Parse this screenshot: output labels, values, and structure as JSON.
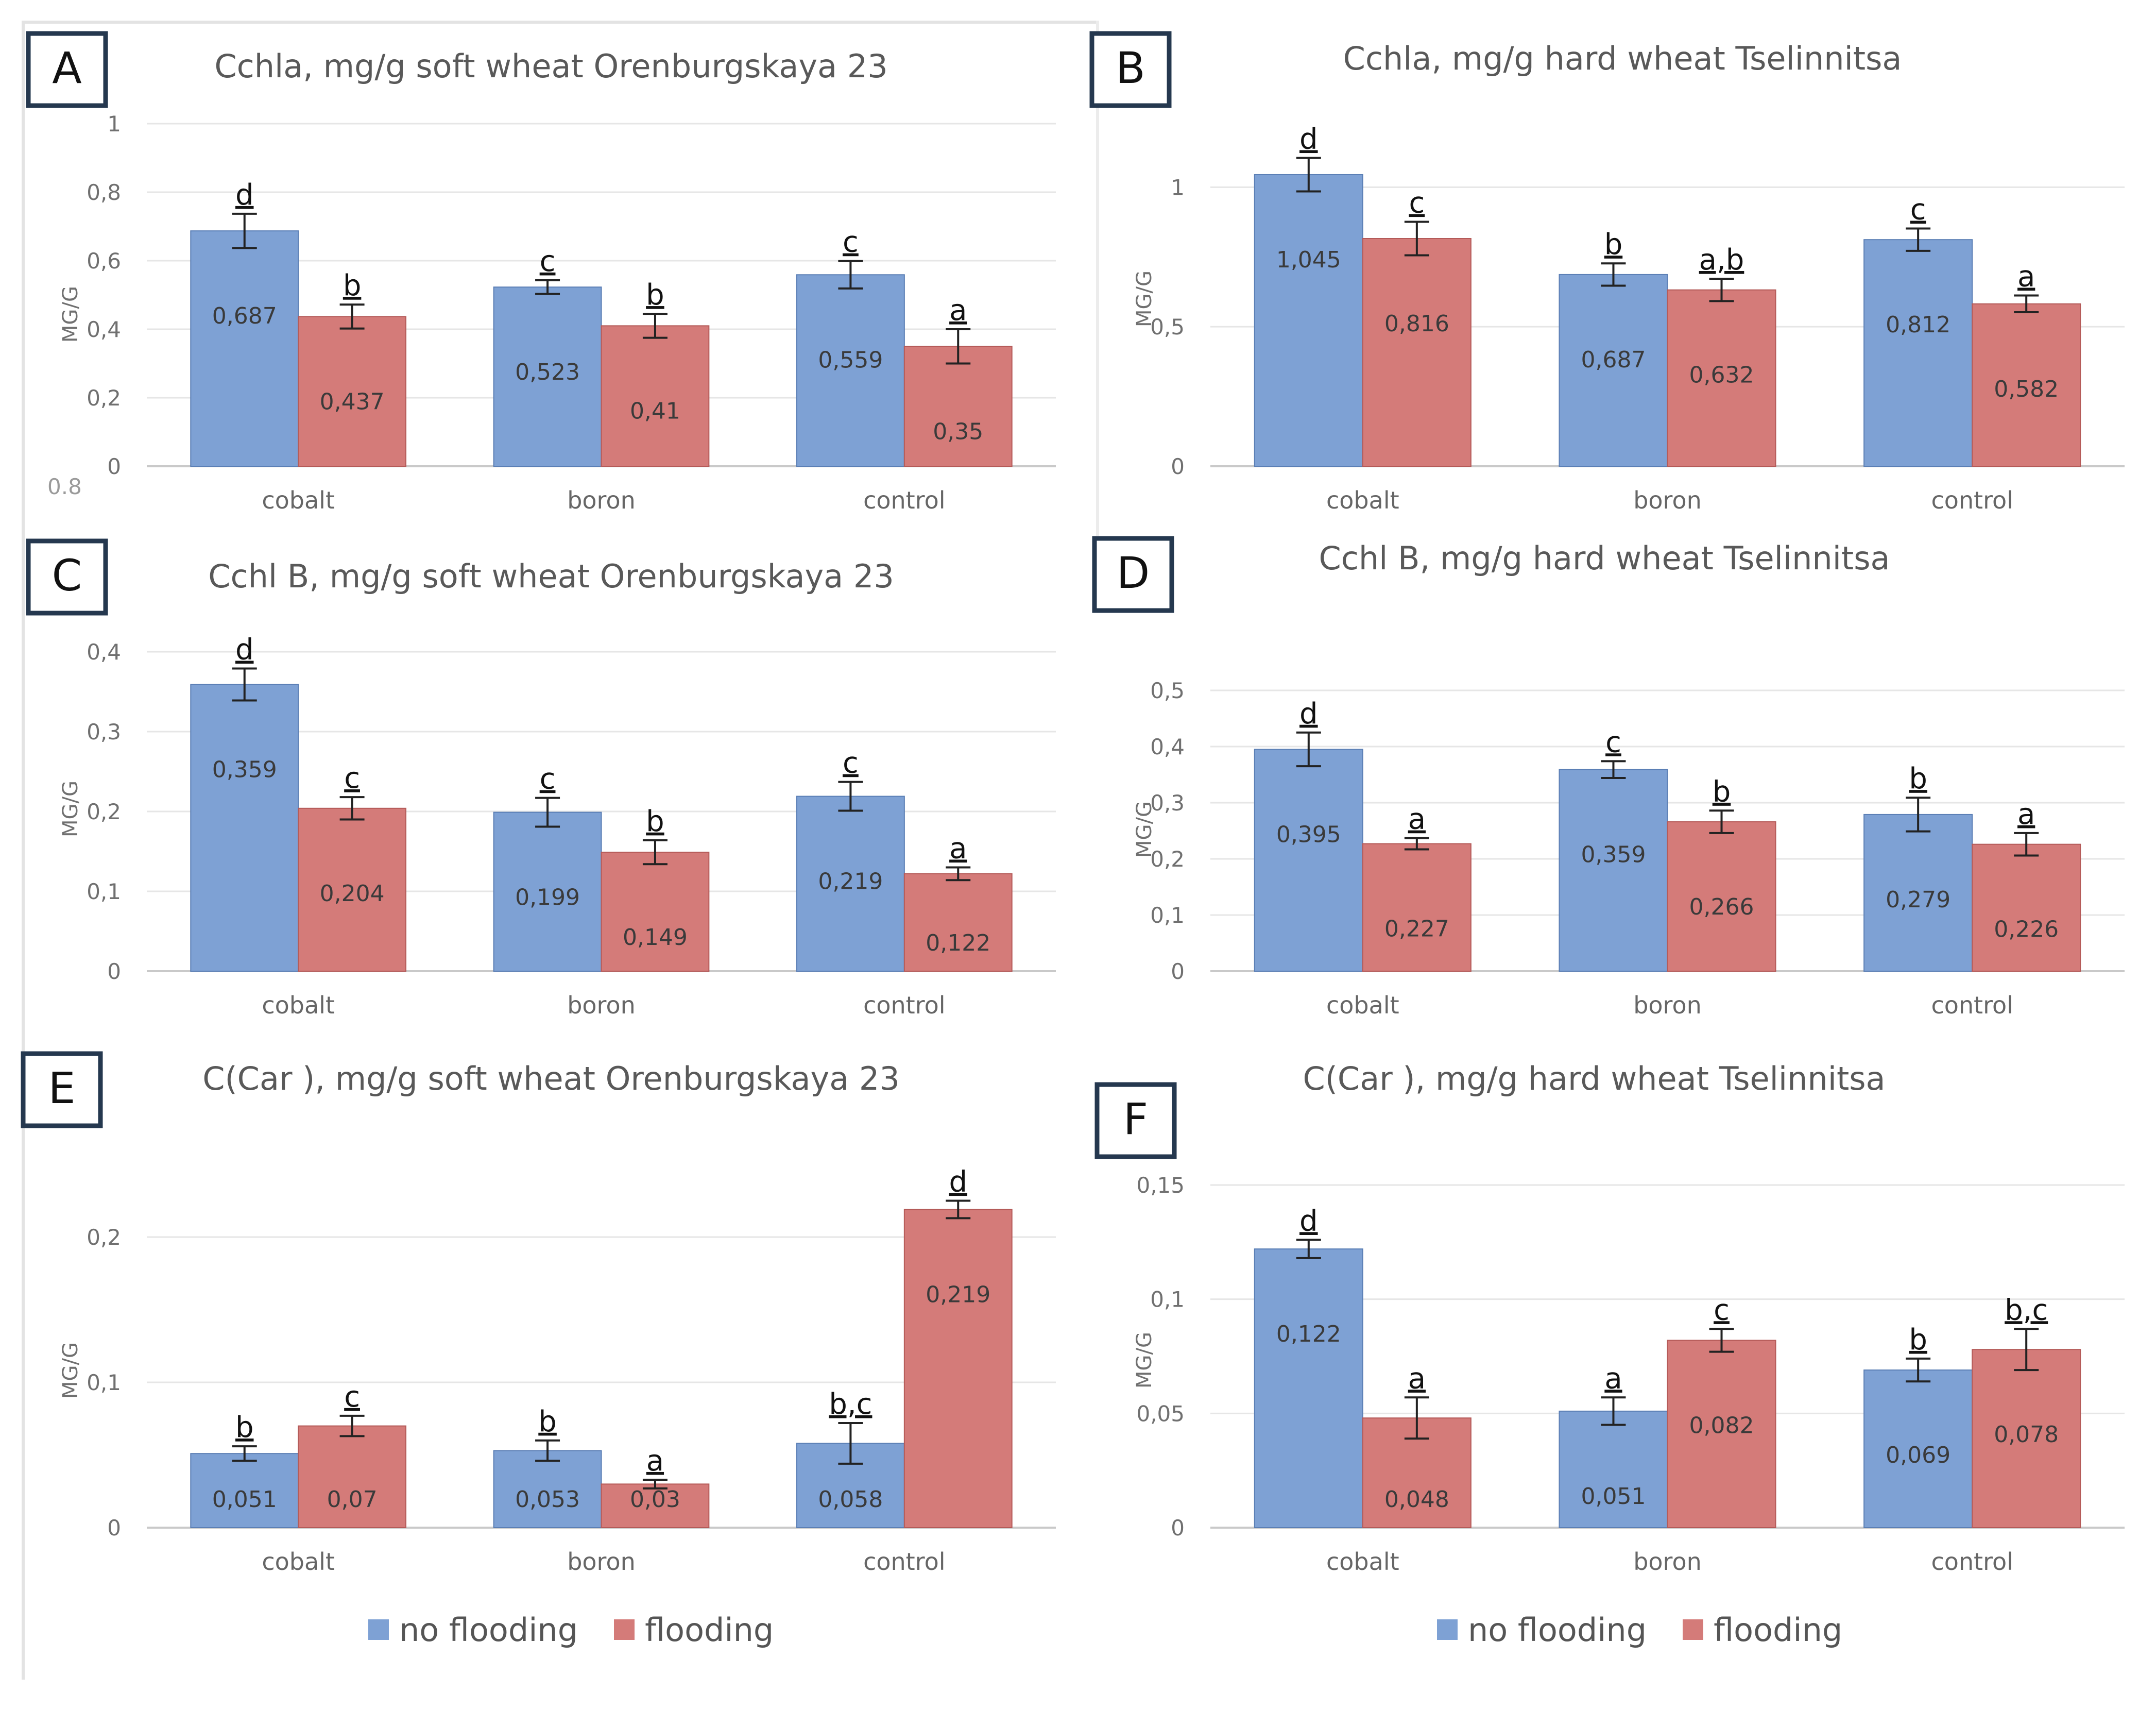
{
  "colors": {
    "no_flooding": "#7ea1d4",
    "flooding": "#d47b79",
    "bar_border_no_flooding": "#5b7fb5",
    "bar_border_flooding": "#b45a58",
    "grid": "#e6e6e6",
    "axis": "#c9c9c9",
    "label_box_border": "#25384f"
  },
  "stray_tick": "0.8",
  "legend": [
    {
      "items": [
        {
          "label": "no flooding",
          "color_key": "no_flooding"
        },
        {
          "label": "flooding",
          "color_key": "flooding"
        }
      ]
    },
    {
      "items": [
        {
          "label": "no flooding",
          "color_key": "no_flooding"
        },
        {
          "label": "flooding",
          "color_key": "flooding"
        }
      ]
    }
  ],
  "chart_data": [
    {
      "panel": "A",
      "type": "bar",
      "title": "Cchla, mg/g  soft wheat Orenburgskaya 23",
      "ylabel": "MG/G",
      "xlabel": "",
      "categories": [
        "cobalt",
        "boron",
        "control"
      ],
      "ylim": [
        0,
        1
      ],
      "yticks": [
        0,
        0.2,
        0.4,
        0.6,
        0.8,
        1
      ],
      "ytick_labels": [
        "0",
        "0,2",
        "0,4",
        "0,6",
        "0,8",
        "1"
      ],
      "series": [
        {
          "name": "no flooding",
          "values": [
            0.687,
            0.523,
            0.559
          ],
          "labels": [
            "0,687",
            "0,523",
            "0,559"
          ],
          "errors": [
            0.05,
            0.02,
            0.04
          ],
          "letters": [
            "d",
            "c",
            "c"
          ]
        },
        {
          "name": "flooding",
          "values": [
            0.437,
            0.41,
            0.35
          ],
          "labels": [
            "0,437",
            "0,41",
            "0,35"
          ],
          "errors": [
            0.035,
            0.035,
            0.05
          ],
          "letters": [
            "b",
            "b",
            "a"
          ]
        }
      ]
    },
    {
      "panel": "B",
      "type": "bar",
      "title": "Cchla, mg/g  hard wheat Tselinnitsa",
      "ylabel": "MG/G",
      "xlabel": "",
      "categories": [
        "cobalt",
        "boron",
        "control"
      ],
      "ylim": [
        0,
        1.2
      ],
      "yticks": [
        0,
        0.5,
        1
      ],
      "ytick_labels": [
        "0",
        "0,5",
        "1"
      ],
      "series": [
        {
          "name": "no flooding",
          "values": [
            1.045,
            0.687,
            0.812
          ],
          "labels": [
            "1,045",
            "0,687",
            "0,812"
          ],
          "errors": [
            0.06,
            0.04,
            0.04
          ],
          "letters": [
            "d",
            "b",
            "c"
          ]
        },
        {
          "name": "flooding",
          "values": [
            0.816,
            0.632,
            0.582
          ],
          "labels": [
            "0,816",
            "0,632",
            "0,582"
          ],
          "errors": [
            0.06,
            0.04,
            0.03
          ],
          "letters": [
            "c",
            "a,b",
            "a"
          ]
        }
      ]
    },
    {
      "panel": "C",
      "type": "bar",
      "title": "Cchl B, mg/g   soft wheat Orenburgskaya 23",
      "ylabel": "MG/G",
      "xlabel": "",
      "categories": [
        "cobalt",
        "boron",
        "control"
      ],
      "ylim": [
        0,
        0.4
      ],
      "yticks": [
        0,
        0.1,
        0.2,
        0.3,
        0.4
      ],
      "ytick_labels": [
        "0",
        "0,1",
        "0,2",
        "0,3",
        "0,4"
      ],
      "series": [
        {
          "name": "no flooding",
          "values": [
            0.359,
            0.199,
            0.219
          ],
          "labels": [
            "0,359",
            "0,199",
            "0,219"
          ],
          "errors": [
            0.02,
            0.018,
            0.018
          ],
          "letters": [
            "d",
            "c",
            "c"
          ]
        },
        {
          "name": "flooding",
          "values": [
            0.204,
            0.149,
            0.122
          ],
          "labels": [
            "0,204",
            "0,149",
            "0,122"
          ],
          "errors": [
            0.014,
            0.015,
            0.008
          ],
          "letters": [
            "c",
            "b",
            "a"
          ]
        }
      ]
    },
    {
      "panel": "D",
      "type": "bar",
      "title": "Cchl B, mg/g  hard wheat Tselinnitsa",
      "ylabel": "MG/G",
      "xlabel": "",
      "categories": [
        "cobalt",
        "boron",
        "control"
      ],
      "ylim": [
        0,
        0.5
      ],
      "yticks": [
        0,
        0.1,
        0.2,
        0.3,
        0.4,
        0.5
      ],
      "ytick_labels": [
        "0",
        "0,1",
        "0,2",
        "0,3",
        "0,4",
        "0,5"
      ],
      "series": [
        {
          "name": "no flooding",
          "values": [
            0.395,
            0.359,
            0.279
          ],
          "labels": [
            "0,395",
            "0,359",
            "0,279"
          ],
          "errors": [
            0.03,
            0.015,
            0.03
          ],
          "letters": [
            "d",
            "c",
            "b"
          ]
        },
        {
          "name": "flooding",
          "values": [
            0.227,
            0.266,
            0.226
          ],
          "labels": [
            "0,227",
            "0,266",
            "0,226"
          ],
          "errors": [
            0.01,
            0.02,
            0.02
          ],
          "letters": [
            "a",
            "b",
            "a"
          ]
        }
      ]
    },
    {
      "panel": "E",
      "type": "bar",
      "title": "C(Car ), mg/g  soft wheat Orenburgskaya 23",
      "ylabel": "MG/G",
      "xlabel": "",
      "categories": [
        "cobalt",
        "boron",
        "control"
      ],
      "ylim": [
        0,
        0.25
      ],
      "yticks": [
        0,
        0.1,
        0.2
      ],
      "ytick_labels": [
        "0",
        "0,1",
        "0,2"
      ],
      "series": [
        {
          "name": "no flooding",
          "values": [
            0.051,
            0.053,
            0.058
          ],
          "labels": [
            "0,051",
            "0,053",
            "0,058"
          ],
          "errors": [
            0.005,
            0.007,
            0.014
          ],
          "letters": [
            "b",
            "b",
            "b,c"
          ]
        },
        {
          "name": "flooding",
          "values": [
            0.07,
            0.03,
            0.219
          ],
          "labels": [
            "0,07",
            "0,03",
            "0,219"
          ],
          "errors": [
            0.007,
            0.003,
            0.006
          ],
          "letters": [
            "c",
            "a",
            "d"
          ]
        }
      ]
    },
    {
      "panel": "F",
      "type": "bar",
      "title": "C(Car ), mg/g  hard wheat Tselinnitsa",
      "ylabel": "MG/G",
      "xlabel": "",
      "categories": [
        "cobalt",
        "boron",
        "control"
      ],
      "ylim": [
        0,
        0.15
      ],
      "yticks": [
        0,
        0.05,
        0.1,
        0.15
      ],
      "ytick_labels": [
        "0",
        "0,05",
        "0,1",
        "0,15"
      ],
      "series": [
        {
          "name": "no flooding",
          "values": [
            0.122,
            0.051,
            0.069
          ],
          "labels": [
            "0,122",
            "0,051",
            "0,069"
          ],
          "errors": [
            0.004,
            0.006,
            0.005
          ],
          "letters": [
            "d",
            "a",
            "b"
          ]
        },
        {
          "name": "flooding",
          "values": [
            0.048,
            0.082,
            0.078
          ],
          "labels": [
            "0,048",
            "0,082",
            "0,078"
          ],
          "errors": [
            0.009,
            0.005,
            0.009
          ],
          "letters": [
            "a",
            "c",
            "b,c"
          ]
        }
      ]
    }
  ]
}
